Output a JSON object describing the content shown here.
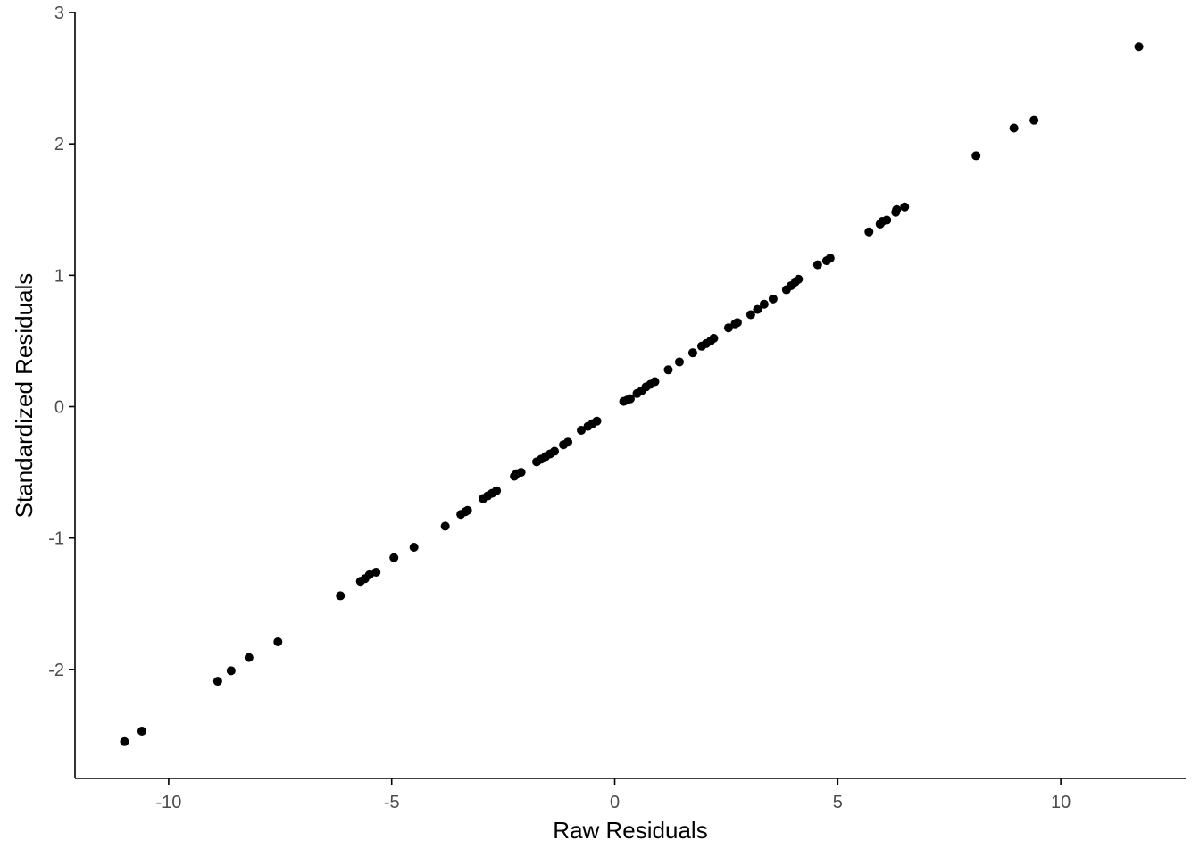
{
  "chart_data": {
    "type": "scatter",
    "title": "",
    "xlabel": "Raw Residuals",
    "ylabel": "Standardized Residuals",
    "xlim": [
      -12.1,
      12.8
    ],
    "ylim": [
      -2.83,
      3.0
    ],
    "x_ticks": [
      -10,
      -5,
      0,
      5,
      10
    ],
    "y_ticks": [
      -2,
      -1,
      0,
      1,
      2,
      3
    ],
    "x_tick_labels": [
      "-10",
      "-5",
      "0",
      "5",
      "10"
    ],
    "y_tick_labels": [
      "-2",
      "-1",
      "0",
      "1",
      "2",
      "3"
    ],
    "grid": false,
    "legend": "none",
    "point_color": "#000000",
    "points": [
      [
        -10.99,
        -2.55
      ],
      [
        -10.6,
        -2.47
      ],
      [
        -8.9,
        -2.09
      ],
      [
        -8.6,
        -2.01
      ],
      [
        -8.2,
        -1.91
      ],
      [
        -7.55,
        -1.79
      ],
      [
        -6.15,
        -1.44
      ],
      [
        -5.7,
        -1.33
      ],
      [
        -5.6,
        -1.31
      ],
      [
        -5.5,
        -1.28
      ],
      [
        -5.35,
        -1.26
      ],
      [
        -4.95,
        -1.15
      ],
      [
        -4.5,
        -1.07
      ],
      [
        -3.8,
        -0.91
      ],
      [
        -3.45,
        -0.82
      ],
      [
        -3.35,
        -0.8
      ],
      [
        -3.3,
        -0.79
      ],
      [
        -2.95,
        -0.7
      ],
      [
        -2.85,
        -0.68
      ],
      [
        -2.75,
        -0.66
      ],
      [
        -2.65,
        -0.64
      ],
      [
        -2.25,
        -0.53
      ],
      [
        -2.2,
        -0.51
      ],
      [
        -2.1,
        -0.5
      ],
      [
        -1.75,
        -0.42
      ],
      [
        -1.65,
        -0.4
      ],
      [
        -1.55,
        -0.38
      ],
      [
        -1.45,
        -0.36
      ],
      [
        -1.35,
        -0.34
      ],
      [
        -1.15,
        -0.29
      ],
      [
        -1.05,
        -0.27
      ],
      [
        -0.75,
        -0.18
      ],
      [
        -0.6,
        -0.15
      ],
      [
        -0.5,
        -0.13
      ],
      [
        -0.4,
        -0.11
      ],
      [
        0.2,
        0.04
      ],
      [
        0.28,
        0.05
      ],
      [
        0.35,
        0.06
      ],
      [
        0.5,
        0.1
      ],
      [
        0.6,
        0.12
      ],
      [
        0.7,
        0.15
      ],
      [
        0.8,
        0.17
      ],
      [
        0.9,
        0.19
      ],
      [
        1.2,
        0.28
      ],
      [
        1.45,
        0.34
      ],
      [
        1.75,
        0.41
      ],
      [
        1.95,
        0.46
      ],
      [
        2.05,
        0.48
      ],
      [
        2.15,
        0.5
      ],
      [
        2.22,
        0.52
      ],
      [
        2.55,
        0.6
      ],
      [
        2.7,
        0.63
      ],
      [
        2.75,
        0.64
      ],
      [
        3.05,
        0.7
      ],
      [
        3.2,
        0.74
      ],
      [
        3.35,
        0.78
      ],
      [
        3.55,
        0.82
      ],
      [
        3.85,
        0.89
      ],
      [
        3.95,
        0.92
      ],
      [
        4.05,
        0.95
      ],
      [
        4.12,
        0.97
      ],
      [
        4.55,
        1.08
      ],
      [
        4.75,
        1.11
      ],
      [
        4.83,
        1.13
      ],
      [
        5.7,
        1.33
      ],
      [
        5.95,
        1.39
      ],
      [
        6.0,
        1.41
      ],
      [
        6.1,
        1.42
      ],
      [
        6.3,
        1.48
      ],
      [
        6.32,
        1.5
      ],
      [
        6.5,
        1.52
      ],
      [
        8.1,
        1.91
      ],
      [
        8.95,
        2.12
      ],
      [
        9.4,
        2.18
      ],
      [
        11.75,
        2.74
      ]
    ]
  }
}
